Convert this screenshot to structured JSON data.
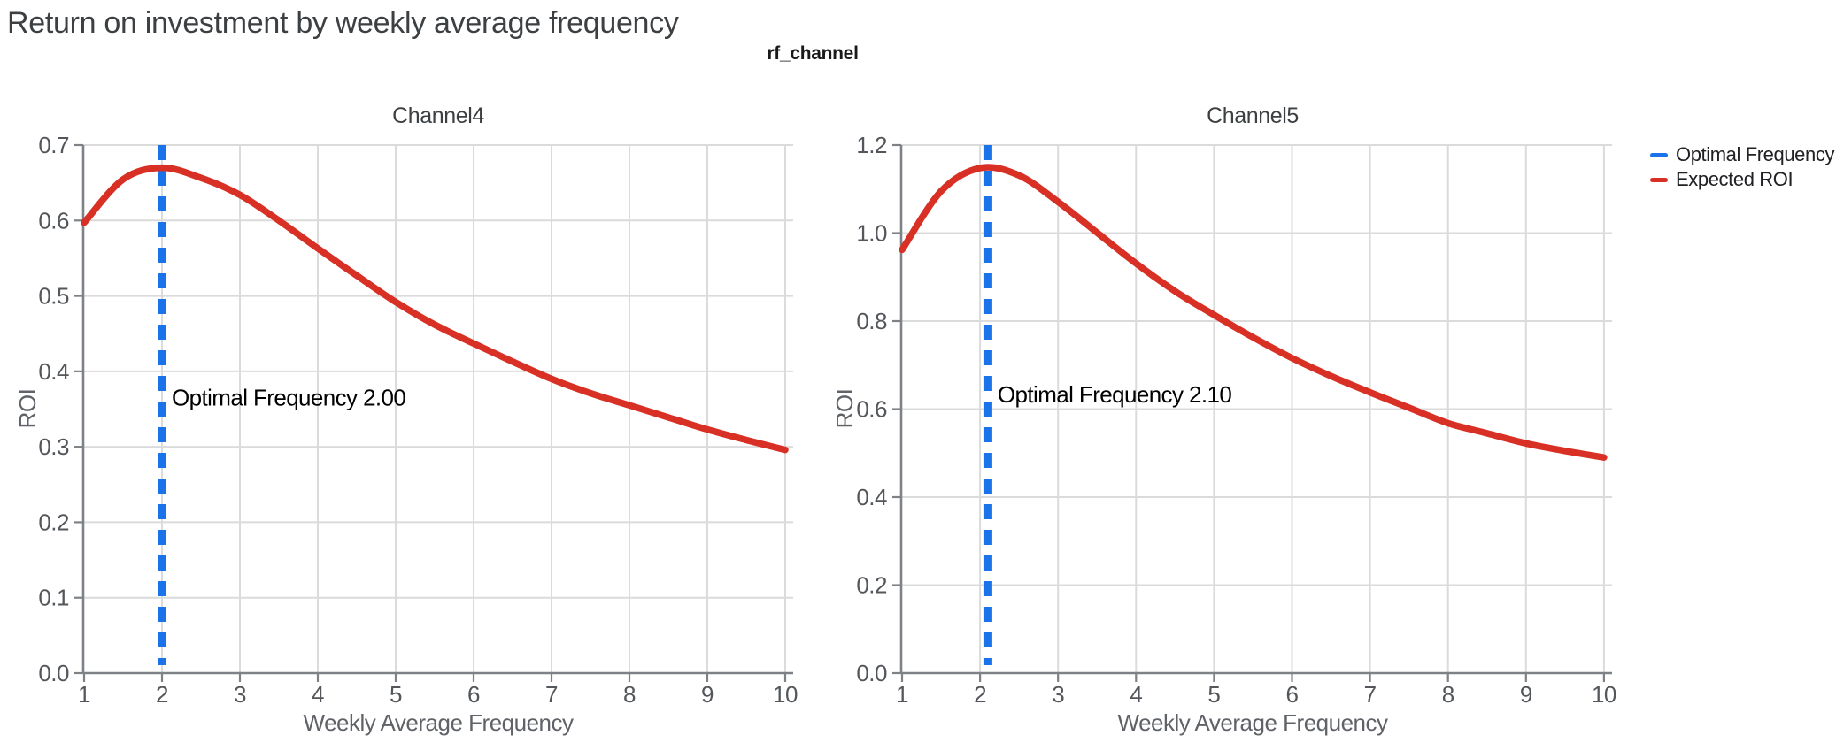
{
  "page": {
    "title": "Return on investment by weekly average frequency"
  },
  "facet": {
    "title": "rf_channel"
  },
  "legend": {
    "position": "top-right",
    "items": [
      {
        "label": "Optimal Frequency",
        "color": "#1A73E8"
      },
      {
        "label": "Expected ROI",
        "color": "#D93025"
      }
    ]
  },
  "chart_data": {
    "type": "line",
    "facet_field": "rf_channel",
    "grid": true,
    "style": {
      "curve_color": "#D93025",
      "rule_color": "#1A73E8",
      "grid_color": "#DBDBDB",
      "domain_color": "#7E8287"
    },
    "subplots": [
      {
        "title": "Channel4",
        "xlabel": "Weekly Average Frequency",
        "ylabel": "ROI",
        "xlim": [
          1,
          10
        ],
        "ylim": [
          0,
          0.7
        ],
        "x_ticks": [
          1,
          2,
          3,
          4,
          5,
          6,
          7,
          8,
          9,
          10
        ],
        "y_ticks": [
          0.0,
          0.1,
          0.2,
          0.3,
          0.4,
          0.5,
          0.6,
          0.7
        ],
        "y_tick_labels": [
          "0.0",
          "0.1",
          "0.2",
          "0.3",
          "0.4",
          "0.5",
          "0.6",
          "0.7"
        ],
        "optimal_frequency": 2.0,
        "annotation": "Optimal Frequency  2.00",
        "annotation_y": 0.365,
        "series": [
          {
            "name": "Expected ROI",
            "x": [
              1,
              1.5,
              2,
              2.5,
              3,
              3.5,
              4,
              4.5,
              5,
              5.5,
              6,
              6.5,
              7,
              7.5,
              8,
              8.5,
              9,
              9.5,
              10
            ],
            "y": [
              0.597,
              0.6545,
              0.67,
              0.6565,
              0.634,
              0.6,
              0.563,
              0.527,
              0.492,
              0.462,
              0.437,
              0.413,
              0.39,
              0.371,
              0.355,
              0.339,
              0.323,
              0.309,
              0.296
            ]
          }
        ]
      },
      {
        "title": "Channel5",
        "xlabel": "Weekly Average Frequency",
        "ylabel": "ROI",
        "xlim": [
          1,
          10
        ],
        "ylim": [
          0,
          1.2
        ],
        "x_ticks": [
          1,
          2,
          3,
          4,
          5,
          6,
          7,
          8,
          9,
          10
        ],
        "y_ticks": [
          0.0,
          0.2,
          0.4,
          0.6,
          0.8,
          1.0,
          1.2
        ],
        "y_tick_labels": [
          "0.0",
          "0.2",
          "0.4",
          "0.6",
          "0.8",
          "1.0",
          "1.2"
        ],
        "optimal_frequency": 2.1,
        "annotation": "Optimal Frequency  2.10",
        "annotation_y": 0.633,
        "series": [
          {
            "name": "Expected ROI",
            "x": [
              1,
              1.5,
              2,
              2.5,
              3,
              3.5,
              4,
              4.5,
              5,
              5.5,
              6,
              6.5,
              7,
              7.5,
              8,
              8.5,
              9,
              9.5,
              10
            ],
            "y": [
              0.962,
              1.095,
              1.148,
              1.131,
              1.071,
              1.001,
              0.931,
              0.868,
              0.814,
              0.763,
              0.716,
              0.675,
              0.638,
              0.603,
              0.568,
              0.545,
              0.522,
              0.505,
              0.49
            ]
          }
        ]
      }
    ]
  }
}
